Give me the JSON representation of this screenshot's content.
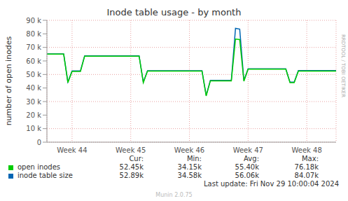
{
  "chart_data": {
    "type": "line",
    "title": "Inode table usage - by month",
    "y_label": "number of open inodes",
    "side_text": "RRDTOOL / TOBI OETIKER",
    "footer": "Last update: Fri Nov 29 10:00:04 2024",
    "credit": "Munin 2.0.75",
    "stats_headers": [
      "Cur:",
      "Min:",
      "Avg:",
      "Max:"
    ],
    "categories": [
      null,
      null,
      null,
      null,
      null,
      null,
      "Week 44",
      null,
      null,
      null,
      null,
      null,
      null,
      null,
      null,
      null,
      null,
      null,
      null,
      null,
      "Week 45",
      null,
      null,
      null,
      null,
      null,
      null,
      null,
      null,
      null,
      null,
      null,
      null,
      null,
      "Week 46",
      null,
      null,
      null,
      null,
      null,
      null,
      null,
      null,
      null,
      null,
      null,
      null,
      null,
      "Week 47",
      null,
      null,
      null,
      null,
      null,
      null,
      null,
      null,
      null,
      null,
      null,
      null,
      null,
      "Week 48",
      null,
      null,
      null,
      null,
      null,
      null,
      null
    ],
    "series": [
      {
        "name": "open inodes",
        "color": "#00cc00",
        "stats": [
          "52.45k",
          "34.15k",
          "55.40k",
          "76.18k"
        ],
        "values": [
          65000,
          65000,
          65000,
          65000,
          65000,
          44000,
          52300,
          52300,
          52300,
          63500,
          63500,
          63500,
          63500,
          63500,
          63500,
          63500,
          63500,
          63500,
          63500,
          63500,
          63500,
          63500,
          63500,
          44000,
          52500,
          52500,
          52500,
          52500,
          52500,
          52500,
          52500,
          52500,
          52500,
          52500,
          52500,
          52500,
          52500,
          52500,
          34150,
          45300,
          45300,
          45300,
          45300,
          45300,
          45300,
          76180,
          75800,
          45000,
          53900,
          53900,
          53900,
          53900,
          53900,
          53900,
          53900,
          53900,
          53900,
          53900,
          44000,
          44000,
          52450,
          52450,
          52450,
          52450,
          52450,
          52450,
          52450,
          52450,
          52450,
          52450
        ]
      },
      {
        "name": "inode table size",
        "color": "#0066b3",
        "stats": [
          "52.89k",
          "34.58k",
          "56.06k",
          "84.07k"
        ],
        "values": [
          65200,
          65200,
          65200,
          65200,
          65200,
          44500,
          52600,
          52600,
          52600,
          63800,
          63800,
          63800,
          63800,
          63800,
          63800,
          63800,
          63800,
          63800,
          63800,
          63800,
          63800,
          63800,
          63800,
          44300,
          52800,
          52800,
          52800,
          52800,
          52800,
          52800,
          52800,
          52800,
          52800,
          52800,
          52800,
          52800,
          52800,
          52800,
          34580,
          45600,
          45600,
          45600,
          45600,
          45600,
          45600,
          84070,
          83500,
          45500,
          54200,
          54200,
          54200,
          54200,
          54200,
          54200,
          54200,
          54200,
          54200,
          54200,
          44300,
          44300,
          52890,
          52890,
          52890,
          52890,
          52890,
          52890,
          52890,
          52890,
          52890,
          52890
        ]
      }
    ],
    "ylim": [
      0,
      90000
    ],
    "yticks": [
      0,
      {
        "value": 10000,
        "label": "10 k"
      },
      {
        "value": 20000,
        "label": "20 k"
      },
      {
        "value": 30000,
        "label": "30 k"
      },
      {
        "value": 40000,
        "label": "40 k"
      },
      {
        "value": 50000,
        "label": "50 k"
      },
      {
        "value": 60000,
        "label": "60 k"
      },
      {
        "value": 70000,
        "label": "70 k"
      },
      {
        "value": 80000,
        "label": "80 k"
      },
      {
        "value": 90000,
        "label": "90 k"
      }
    ],
    "grid": true,
    "legend": "bottom"
  }
}
